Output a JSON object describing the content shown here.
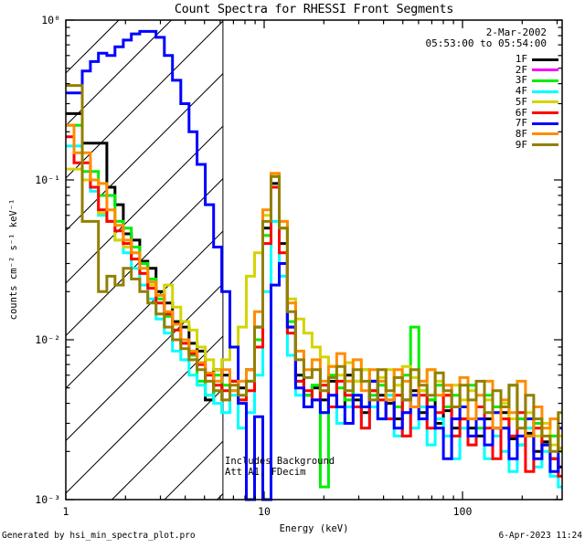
{
  "title": "Count Spectra for RHESSI Front Segments",
  "header": {
    "date": "2-Mar-2002",
    "time_range": "05:53:00 to 05:54:00"
  },
  "annotations": {
    "line1": "Includes Background",
    "line2": "Att A1, FDecim"
  },
  "footer": {
    "left": "Generated by hsi_min_spectra_plot.pro",
    "right": "6-Apr-2023 11:24"
  },
  "chart_data": {
    "type": "line",
    "scale": "log-log",
    "title": "Count Spectra for RHESSI Front Segments",
    "xlabel": "Energy (keV)",
    "ylabel": "counts cm⁻² s⁻¹ keV⁻¹",
    "xlim": [
      1,
      320
    ],
    "ylim": [
      0.001,
      1
    ],
    "xticks": [
      1,
      10,
      100
    ],
    "yticks": [
      1,
      0.1,
      0.01,
      0.001
    ],
    "ytick_labels": [
      "10⁰",
      "10⁻¹",
      "10⁻²",
      "10⁻³"
    ],
    "grid": false,
    "legend_position": "top-right",
    "hatched_region_keV": [
      1,
      6.2
    ],
    "attenuator_line_keV": 6.2,
    "energy_bin_edges_keV": [
      1.0,
      1.1,
      1.21,
      1.33,
      1.46,
      1.61,
      1.77,
      1.95,
      2.14,
      2.36,
      2.59,
      2.85,
      3.14,
      3.45,
      3.8,
      4.18,
      4.59,
      5.05,
      5.56,
      6.11,
      6.72,
      7.4,
      8.13,
      8.95,
      9.84,
      10.83,
      11.91,
      13.1,
      14.41,
      15.85,
      17.44,
      19.18,
      21.1,
      23.21,
      25.53,
      28.08,
      30.89,
      33.98,
      37.38,
      41.11,
      45.23,
      49.75,
      54.72,
      60.2,
      66.22,
      72.84,
      80.12,
      88.13,
      96.95,
      106.6,
      117.3,
      129.0,
      141.9,
      156.1,
      171.7,
      188.9,
      207.8,
      228.6,
      251.4,
      276.6,
      304.2,
      320.0
    ],
    "series": [
      {
        "name": "1F",
        "color": "#000000",
        "values": [
          0.26,
          0.26,
          0.17,
          0.17,
          0.17,
          0.09,
          0.07,
          0.046,
          0.042,
          0.031,
          0.028,
          0.02,
          0.017,
          0.013,
          0.012,
          0.0095,
          0.0085,
          0.0042,
          0.0065,
          0.006,
          0.0055,
          0.005,
          0.0065,
          0.012,
          0.05,
          0.095,
          0.04,
          0.012,
          0.006,
          0.0045,
          0.005,
          0.0042,
          0.0055,
          0.0038,
          0.006,
          0.0042,
          0.0035,
          0.0055,
          0.0045,
          0.004,
          0.0032,
          0.0042,
          0.0048,
          0.0035,
          0.0042,
          0.003,
          0.0036,
          0.0028,
          0.0032,
          0.0028,
          0.0025,
          0.0032,
          0.0028,
          0.0035,
          0.0024,
          0.0022,
          0.0026,
          0.002,
          0.0023,
          0.0018,
          0.0016
        ]
      },
      {
        "name": "2F",
        "color": "#FF00FF",
        "values": []
      },
      {
        "name": "3F",
        "color": "#00EE00",
        "values": [
          0.22,
          0.22,
          0.113,
          0.113,
          0.08,
          0.08,
          0.055,
          0.05,
          0.038,
          0.03,
          0.024,
          0.018,
          0.014,
          0.0115,
          0.0095,
          0.008,
          0.0055,
          0.0045,
          0.006,
          0.0052,
          0.0048,
          0.0042,
          0.0055,
          0.01,
          0.045,
          0.105,
          0.05,
          0.013,
          0.0055,
          0.0045,
          0.0052,
          0.0012,
          0.006,
          0.005,
          0.0042,
          0.0055,
          0.0065,
          0.0045,
          0.0052,
          0.0045,
          0.0038,
          0.006,
          0.012,
          0.0048,
          0.0042,
          0.0052,
          0.0038,
          0.0045,
          0.0032,
          0.0052,
          0.0028,
          0.0045,
          0.0038,
          0.0028,
          0.0052,
          0.0032,
          0.0025,
          0.003,
          0.0022,
          0.0025,
          0.002
        ]
      },
      {
        "name": "4F",
        "color": "#00FFFF",
        "values": [
          0.163,
          0.163,
          0.1,
          0.085,
          0.06,
          0.055,
          0.042,
          0.035,
          0.028,
          0.022,
          0.018,
          0.0135,
          0.011,
          0.0085,
          0.0075,
          0.006,
          0.0052,
          0.0045,
          0.004,
          0.0035,
          0.0045,
          0.0028,
          0.0035,
          0.006,
          0.02,
          0.055,
          0.025,
          0.008,
          0.0045,
          0.0038,
          0.0042,
          0.0035,
          0.0045,
          0.003,
          0.0038,
          0.0045,
          0.0028,
          0.0038,
          0.0032,
          0.0045,
          0.0025,
          0.0035,
          0.0028,
          0.0038,
          0.0022,
          0.0032,
          0.0025,
          0.0018,
          0.0028,
          0.0022,
          0.0032,
          0.0018,
          0.0025,
          0.002,
          0.0015,
          0.0022,
          0.0028,
          0.0016,
          0.002,
          0.0014,
          0.0012
        ]
      },
      {
        "name": "5F",
        "color": "#D4D400",
        "values": [
          0.117,
          0.117,
          0.1,
          0.1,
          0.062,
          0.055,
          0.042,
          0.038,
          0.032,
          0.026,
          0.022,
          0.019,
          0.022,
          0.016,
          0.013,
          0.0115,
          0.009,
          0.0075,
          0.0065,
          0.0075,
          0.009,
          0.012,
          0.025,
          0.035,
          0.06,
          0.09,
          0.055,
          0.018,
          0.0135,
          0.011,
          0.009,
          0.0078,
          0.0068,
          0.006,
          0.0072,
          0.0055,
          0.0065,
          0.0048,
          0.0058,
          0.0065,
          0.0052,
          0.0068,
          0.0058,
          0.0048,
          0.0065,
          0.0055,
          0.0045,
          0.0052,
          0.0042,
          0.0048,
          0.0038,
          0.0042,
          0.0035,
          0.004,
          0.0032,
          0.0028,
          0.0035,
          0.0025,
          0.003,
          0.0022,
          0.0025
        ]
      },
      {
        "name": "6F",
        "color": "#FF0000",
        "values": [
          0.186,
          0.128,
          0.128,
          0.09,
          0.065,
          0.055,
          0.048,
          0.04,
          0.032,
          0.026,
          0.021,
          0.017,
          0.0145,
          0.0115,
          0.0095,
          0.0082,
          0.007,
          0.006,
          0.0052,
          0.0048,
          0.0055,
          0.0042,
          0.0048,
          0.009,
          0.04,
          0.09,
          0.035,
          0.011,
          0.0055,
          0.0048,
          0.0042,
          0.0052,
          0.0038,
          0.0055,
          0.0045,
          0.0038,
          0.0028,
          0.0048,
          0.0042,
          0.0032,
          0.0045,
          0.0025,
          0.0038,
          0.0045,
          0.0028,
          0.0035,
          0.0045,
          0.0025,
          0.0032,
          0.0022,
          0.0038,
          0.0028,
          0.0018,
          0.0032,
          0.0025,
          0.0035,
          0.0015,
          0.0028,
          0.0022,
          0.0018,
          0.0014
        ]
      },
      {
        "name": "7F",
        "color": "#0000FF",
        "values": [
          0.35,
          0.35,
          0.48,
          0.55,
          0.62,
          0.6,
          0.68,
          0.75,
          0.82,
          0.85,
          0.85,
          0.78,
          0.6,
          0.42,
          0.3,
          0.2,
          0.125,
          0.07,
          0.038,
          0.02,
          0.009,
          0.004,
          0.001,
          0.0033,
          0.001,
          0.022,
          0.03,
          0.012,
          0.005,
          0.0038,
          0.0042,
          0.0035,
          0.0045,
          0.0038,
          0.003,
          0.0045,
          0.0038,
          0.0055,
          0.0032,
          0.0042,
          0.0028,
          0.0035,
          0.0045,
          0.0032,
          0.0038,
          0.0028,
          0.0018,
          0.0032,
          0.0038,
          0.0025,
          0.0032,
          0.0022,
          0.0035,
          0.0028,
          0.0018,
          0.0025,
          0.0032,
          0.0018,
          0.0022,
          0.0015,
          0.0028
        ]
      },
      {
        "name": "8F",
        "color": "#FF8C00",
        "values": [
          0.22,
          0.148,
          0.148,
          0.1,
          0.095,
          0.065,
          0.052,
          0.042,
          0.035,
          0.028,
          0.023,
          0.019,
          0.015,
          0.0125,
          0.01,
          0.0085,
          0.0072,
          0.0062,
          0.0055,
          0.0065,
          0.0048,
          0.0055,
          0.0065,
          0.015,
          0.065,
          0.11,
          0.055,
          0.017,
          0.0085,
          0.0065,
          0.0075,
          0.0055,
          0.0068,
          0.0082,
          0.0055,
          0.0075,
          0.0048,
          0.0065,
          0.0055,
          0.0042,
          0.0065,
          0.0055,
          0.0038,
          0.0055,
          0.0065,
          0.0045,
          0.0052,
          0.0038,
          0.0058,
          0.0032,
          0.0045,
          0.0055,
          0.0028,
          0.0042,
          0.0035,
          0.0055,
          0.0025,
          0.0038,
          0.0028,
          0.0032,
          0.0021
        ]
      },
      {
        "name": "9F",
        "color": "#937F00",
        "values": [
          0.39,
          0.39,
          0.055,
          0.055,
          0.02,
          0.025,
          0.022,
          0.028,
          0.024,
          0.02,
          0.017,
          0.0145,
          0.012,
          0.01,
          0.0088,
          0.0075,
          0.0065,
          0.0055,
          0.0048,
          0.0042,
          0.0052,
          0.0045,
          0.0055,
          0.012,
          0.055,
          0.105,
          0.05,
          0.015,
          0.0075,
          0.0058,
          0.0065,
          0.0048,
          0.0058,
          0.0068,
          0.0048,
          0.0065,
          0.0055,
          0.0042,
          0.0065,
          0.0048,
          0.0058,
          0.0042,
          0.0065,
          0.0052,
          0.0045,
          0.0062,
          0.0048,
          0.0038,
          0.0052,
          0.0042,
          0.0055,
          0.0035,
          0.0048,
          0.0038,
          0.0052,
          0.0028,
          0.0045,
          0.0032,
          0.0025,
          0.002,
          0.0035
        ]
      }
    ]
  }
}
